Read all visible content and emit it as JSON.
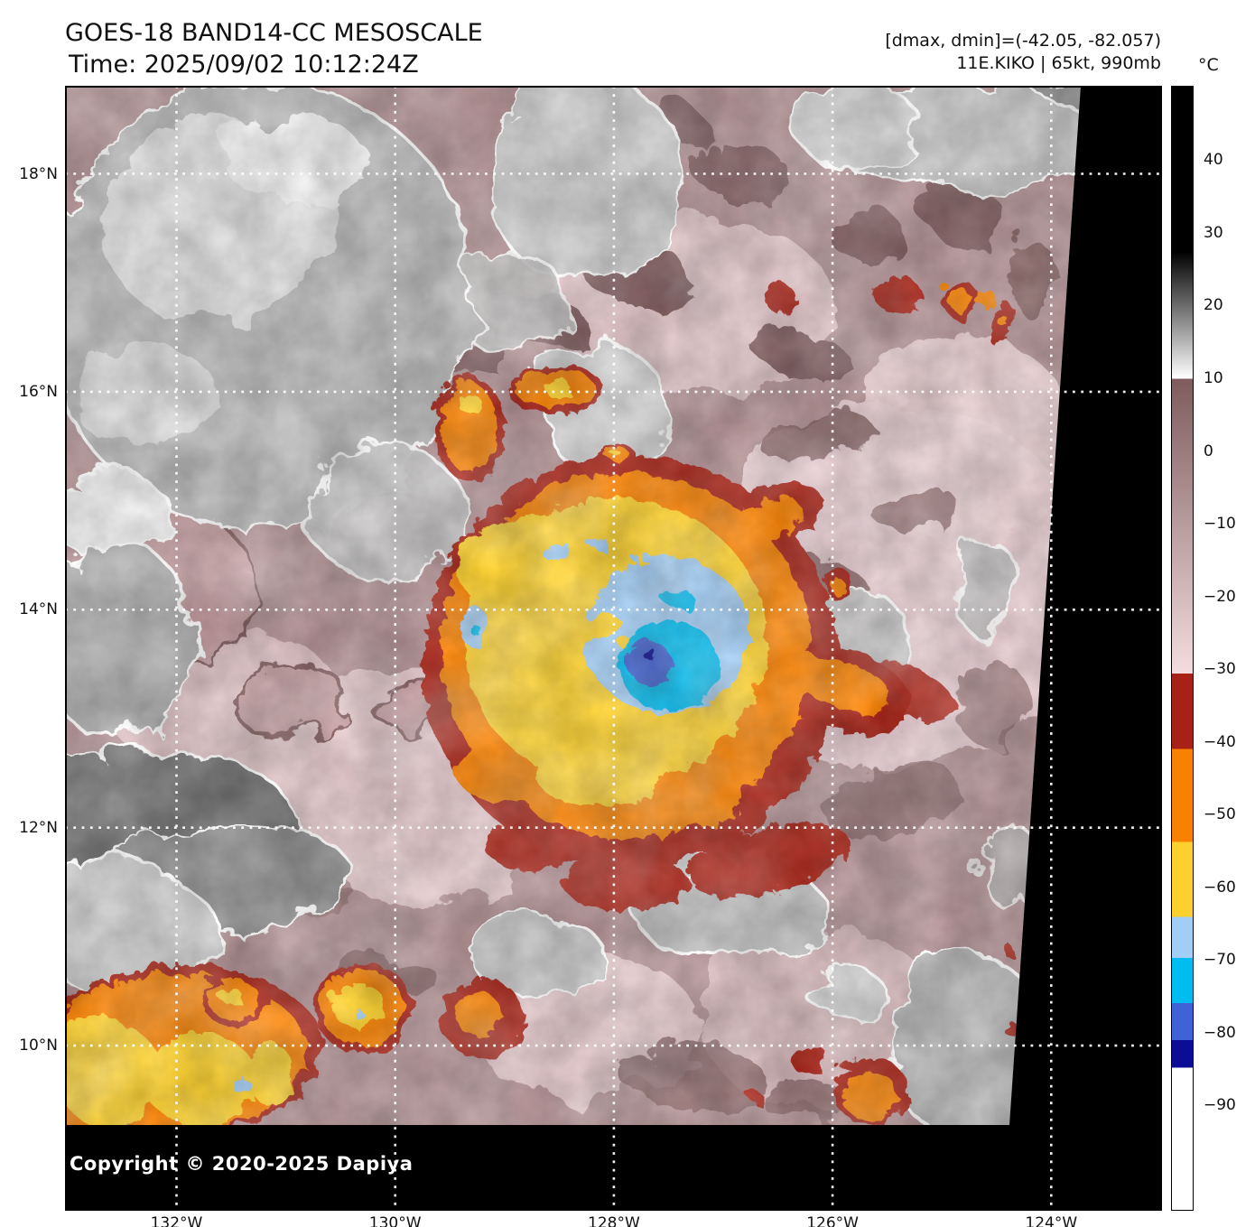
{
  "header": {
    "title_line1": "GOES-18 BAND14-CC MESOSCALE",
    "title_line2": "Time: 2025/09/02 10:12:24Z",
    "annotation_line1": "[dmax, dmin]=(-42.05, -82.057)",
    "annotation_line2": "11E.KIKO | 65kt, 990mb"
  },
  "storm": {
    "designation": "11E.KIKO",
    "intensity": "65kt",
    "pressure": "990mb",
    "dmax": "-42.05",
    "dmin": "-82.057"
  },
  "map": {
    "lat_labels": [
      "18°N",
      "16°N",
      "14°N",
      "12°N",
      "10°N"
    ],
    "lon_labels": [
      "132°W",
      "130°W",
      "128°W",
      "126°W",
      "124°W"
    ],
    "copyright": "Copyright © 2020-2025 Dapiya"
  },
  "colorbar": {
    "unit_label": "°C",
    "tick_labels": [
      "40",
      "30",
      "20",
      "10",
      "0",
      "−10",
      "−20",
      "−30",
      "−40",
      "−50",
      "−60",
      "−70",
      "−80",
      "−90"
    ],
    "tick_temps": [
      40,
      30,
      20,
      10,
      0,
      -10,
      -20,
      -30,
      -40,
      -50,
      -60,
      -70,
      -80,
      -90
    ],
    "segments": [
      {
        "from": 50.2,
        "to": 27.5,
        "color": "#000000"
      },
      {
        "from": 27.5,
        "to": 10.0,
        "color": "#000000",
        "color2": "#ffffff"
      },
      {
        "from": 10.0,
        "to": -30.6,
        "color": "#7e5c5e",
        "color2": "#f3dcdf"
      },
      {
        "from": -30.6,
        "to": -41.0,
        "color": "#a82119"
      },
      {
        "from": -41.0,
        "to": -53.8,
        "color": "#f98100"
      },
      {
        "from": -53.8,
        "to": -64.1,
        "color": "#fcd12e"
      },
      {
        "from": -64.1,
        "to": -69.8,
        "color": "#a2cdf4"
      },
      {
        "from": -69.8,
        "to": -76.0,
        "color": "#00bdf1"
      },
      {
        "from": -76.0,
        "to": -81.1,
        "color": "#3f63d6"
      },
      {
        "from": -81.1,
        "to": -84.9,
        "color": "#0c0c96"
      },
      {
        "from": -84.9,
        "to": -104.5,
        "color": "#ffffff"
      }
    ]
  },
  "palette": {
    "cold_ring_dark_red": "#a82119",
    "cold_ring_orange": "#f98100",
    "cold_ring_yellow": "#fcd12e",
    "cold_core_light_blue": "#a2cdf4",
    "cold_core_cyan": "#00bdf1",
    "cold_core_royal_blue": "#3f63d6",
    "cold_core_navy": "#0c0c96",
    "warm_mauve": "#b29093",
    "no_data_black": "#000000"
  }
}
